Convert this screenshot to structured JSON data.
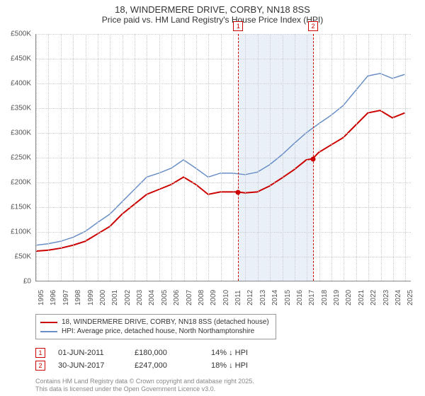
{
  "title": {
    "line1": "18, WINDERMERE DRIVE, CORBY, NN18 8SS",
    "line2": "Price paid vs. HM Land Registry's House Price Index (HPI)"
  },
  "chart": {
    "type": "line",
    "ylim": [
      0,
      500000
    ],
    "ytick_step": 50000,
    "y_ticks": [
      "£0",
      "£50K",
      "£100K",
      "£150K",
      "£200K",
      "£250K",
      "£300K",
      "£350K",
      "£400K",
      "£450K",
      "£500K"
    ],
    "x_ticks": [
      "1995",
      "1996",
      "1997",
      "1998",
      "1999",
      "2000",
      "2001",
      "2002",
      "2003",
      "2004",
      "2005",
      "2006",
      "2007",
      "2008",
      "2009",
      "2010",
      "2011",
      "2012",
      "2013",
      "2014",
      "2015",
      "2016",
      "2017",
      "2018",
      "2019",
      "2020",
      "2021",
      "2022",
      "2023",
      "2024",
      "2025"
    ],
    "xlim": [
      1995,
      2025.5
    ],
    "background_color": "#ffffff",
    "grid_color": "#cccccc",
    "shade_band": {
      "x_start": 2011.42,
      "x_end": 2017.5,
      "color": "#eaf0f8"
    },
    "series": [
      {
        "name": "price_paid",
        "label": "18, WINDERMERE DRIVE, CORBY, NN18 8SS (detached house)",
        "color": "#cc0000",
        "line_width": 2,
        "points": [
          [
            1995,
            60000
          ],
          [
            1996,
            62000
          ],
          [
            1997,
            66000
          ],
          [
            1998,
            72000
          ],
          [
            1999,
            80000
          ],
          [
            2000,
            95000
          ],
          [
            2001,
            110000
          ],
          [
            2002,
            135000
          ],
          [
            2003,
            155000
          ],
          [
            2004,
            175000
          ],
          [
            2005,
            185000
          ],
          [
            2006,
            195000
          ],
          [
            2007,
            210000
          ],
          [
            2008,
            195000
          ],
          [
            2009,
            175000
          ],
          [
            2010,
            180000
          ],
          [
            2011,
            180000
          ],
          [
            2011.42,
            180000
          ],
          [
            2012,
            178000
          ],
          [
            2013,
            180000
          ],
          [
            2014,
            192000
          ],
          [
            2015,
            208000
          ],
          [
            2016,
            225000
          ],
          [
            2017,
            245000
          ],
          [
            2017.5,
            247000
          ],
          [
            2018,
            260000
          ],
          [
            2019,
            275000
          ],
          [
            2020,
            290000
          ],
          [
            2021,
            315000
          ],
          [
            2022,
            340000
          ],
          [
            2023,
            345000
          ],
          [
            2024,
            330000
          ],
          [
            2025,
            340000
          ]
        ]
      },
      {
        "name": "hpi",
        "label": "HPI: Average price, detached house, North Northamptonshire",
        "color": "#6a8fc7",
        "line_width": 1.5,
        "points": [
          [
            1995,
            72000
          ],
          [
            1996,
            75000
          ],
          [
            1997,
            80000
          ],
          [
            1998,
            88000
          ],
          [
            1999,
            100000
          ],
          [
            2000,
            118000
          ],
          [
            2001,
            135000
          ],
          [
            2002,
            160000
          ],
          [
            2003,
            185000
          ],
          [
            2004,
            210000
          ],
          [
            2005,
            218000
          ],
          [
            2006,
            228000
          ],
          [
            2007,
            245000
          ],
          [
            2008,
            228000
          ],
          [
            2009,
            210000
          ],
          [
            2010,
            218000
          ],
          [
            2011,
            218000
          ],
          [
            2012,
            215000
          ],
          [
            2013,
            220000
          ],
          [
            2014,
            235000
          ],
          [
            2015,
            255000
          ],
          [
            2016,
            278000
          ],
          [
            2017,
            300000
          ],
          [
            2018,
            318000
          ],
          [
            2019,
            335000
          ],
          [
            2020,
            355000
          ],
          [
            2021,
            385000
          ],
          [
            2022,
            415000
          ],
          [
            2023,
            420000
          ],
          [
            2024,
            410000
          ],
          [
            2025,
            418000
          ]
        ]
      }
    ],
    "markers": [
      {
        "id": "1",
        "x": 2011.42,
        "y": 180000,
        "point_color": "#cc0000"
      },
      {
        "id": "2",
        "x": 2017.5,
        "y": 247000,
        "point_color": "#cc0000"
      }
    ]
  },
  "legend": {
    "items": [
      {
        "color": "#cc0000",
        "label": "18, WINDERMERE DRIVE, CORBY, NN18 8SS (detached house)"
      },
      {
        "color": "#6a8fc7",
        "label": "HPI: Average price, detached house, North Northamptonshire"
      }
    ]
  },
  "data_rows": [
    {
      "id": "1",
      "date": "01-JUN-2011",
      "price": "£180,000",
      "delta": "14% ↓ HPI"
    },
    {
      "id": "2",
      "date": "30-JUN-2017",
      "price": "£247,000",
      "delta": "18% ↓ HPI"
    }
  ],
  "footer": {
    "line1": "Contains HM Land Registry data © Crown copyright and database right 2025.",
    "line2": "This data is licensed under the Open Government Licence v3.0."
  }
}
